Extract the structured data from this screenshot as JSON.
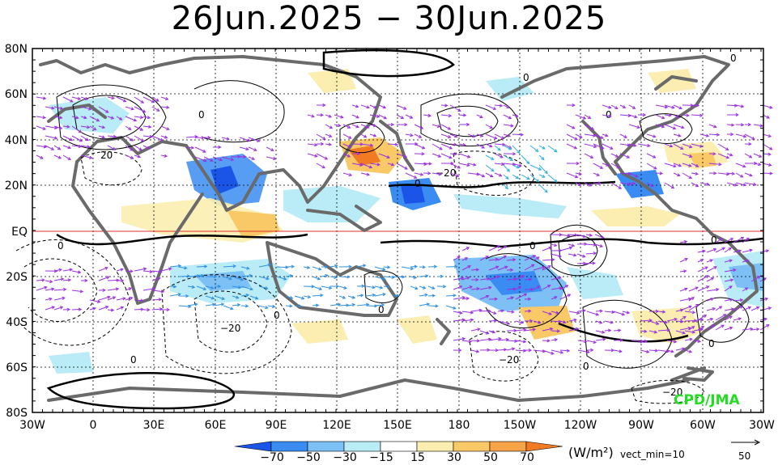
{
  "title": "26Jun.2025 − 30Jun.2025",
  "credit": "CPD/JMA",
  "lat_labels": [
    "80N",
    "60N",
    "40N",
    "20N",
    "EQ",
    "20S",
    "40S",
    "60S",
    "80S"
  ],
  "lon_labels": [
    "30W",
    "0",
    "30E",
    "60E",
    "90E",
    "120E",
    "150E",
    "180",
    "150W",
    "120W",
    "90W",
    "60W",
    "30W"
  ],
  "colorbar": {
    "ticks": [
      "−70",
      "−50",
      "−30",
      "−15",
      "15",
      "30",
      "50",
      "70"
    ],
    "colors": [
      "#1a55e8",
      "#3a8cf2",
      "#7cc0f5",
      "#b9ecf6",
      "#ffffff",
      "#fbeeb0",
      "#f9c968",
      "#f7a347",
      "#f27a22"
    ],
    "unit": "(W/m²)",
    "vect_min": "vect_min=10",
    "ref_vector": "50"
  },
  "contour_labels": [
    "0",
    "0",
    "0",
    "0",
    "0",
    "0",
    "0",
    "0",
    "0",
    "0",
    "0",
    "0",
    "0",
    "20",
    "−20",
    "−20",
    "−20",
    "−20"
  ]
}
